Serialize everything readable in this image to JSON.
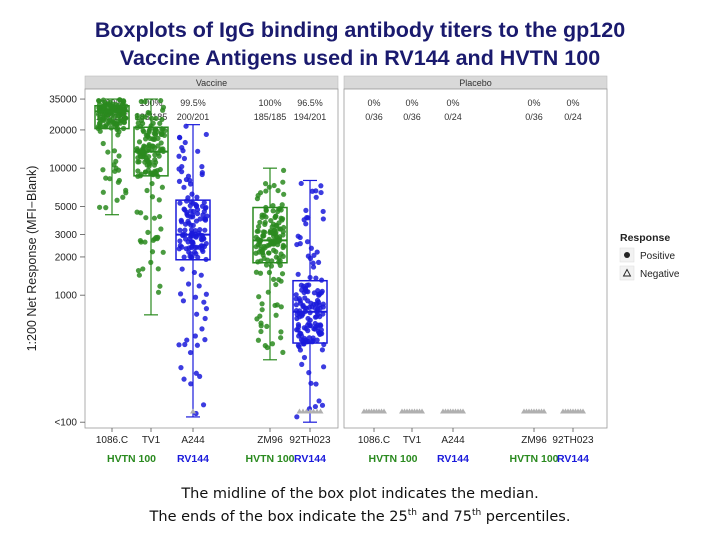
{
  "title": [
    "Boxplots of IgG binding antibody titers to the gp120",
    "Vaccine Antigens used in RV144 and HVTN 100"
  ],
  "caption": {
    "line1": "The midline of the box plot indicates the median.",
    "line2": [
      "The ends of the box indicate the 25",
      "th",
      " and 75",
      "th",
      " percentiles."
    ]
  },
  "chart_data": {
    "type": "boxplot",
    "ylabel": "1:200 Net Response (MFI−Blank)",
    "yscale": "log",
    "yticks": [
      "<100",
      "1000",
      "2000",
      "3000",
      "5000",
      "10000",
      "20000",
      "35000"
    ],
    "ytick_values": [
      100,
      1000,
      2000,
      3000,
      5000,
      10000,
      20000,
      35000
    ],
    "ylim": [
      90,
      42000
    ],
    "colors": {
      "HVTN 100": "#2a8a1f",
      "RV144": "#1a1adb",
      "negative": "#b0b0b0"
    },
    "legend": {
      "title": "Response",
      "entries": [
        "Positive",
        "Negative"
      ],
      "position": "right"
    },
    "panels": [
      {
        "name": "Vaccine",
        "groups": [
          {
            "antigen": "1086.C",
            "trial": "HVTN 100",
            "pct": "100%",
            "frac": "185/185",
            "min": 4300,
            "q1": 20500,
            "median": 28000,
            "q3": 31000,
            "max": 35000
          },
          {
            "antigen": "TV1",
            "trial": "HVTN 100",
            "pct": "100%",
            "frac": "185/185",
            "min": 700,
            "q1": 8700,
            "median": 13500,
            "q3": 21000,
            "max": 35000
          },
          {
            "antigen": "A244",
            "trial": "RV144",
            "pct": "99.5%",
            "frac": "200/201",
            "min": 110,
            "q1": 1900,
            "median": 3000,
            "q3": 5600,
            "max": 22000
          },
          {
            "antigen": "ZM96",
            "trial": "HVTN 100",
            "pct": "100%",
            "frac": "185/185",
            "min": 310,
            "q1": 1800,
            "median": 2700,
            "q3": 4900,
            "max": 10000
          },
          {
            "antigen": "92TH023",
            "trial": "RV144",
            "pct": "96.5%",
            "frac": "194/201",
            "min": 100,
            "q1": 420,
            "median": 740,
            "q3": 1300,
            "max": 8000
          }
        ]
      },
      {
        "name": "Placebo",
        "groups": [
          {
            "antigen": "1086.C",
            "trial": "HVTN 100",
            "pct": "0%",
            "frac": "0/36"
          },
          {
            "antigen": "TV1",
            "trial": "HVTN 100",
            "pct": "0%",
            "frac": "0/36"
          },
          {
            "antigen": "A244",
            "trial": "RV144",
            "pct": "0%",
            "frac": "0/24"
          },
          {
            "antigen": "ZM96",
            "trial": "HVTN 100",
            "pct": "0%",
            "frac": "0/36"
          },
          {
            "antigen": "92TH023",
            "trial": "RV144",
            "pct": "0%",
            "frac": "0/24"
          }
        ]
      }
    ]
  }
}
